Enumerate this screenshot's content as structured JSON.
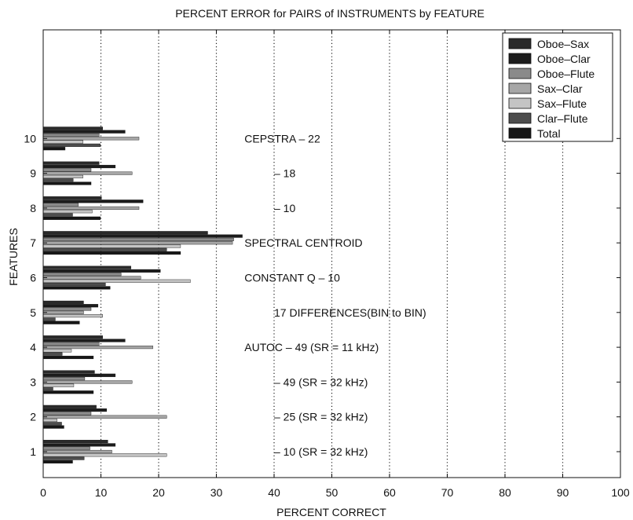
{
  "chart_data": {
    "type": "bar",
    "orientation": "horizontal",
    "title": "PERCENT ERROR for PAIRS of INSTRUMENTS by FEATURE",
    "xlabel": "PERCENT CORRECT",
    "ylabel": "FEATURES",
    "xlim": [
      0,
      100
    ],
    "xticks": [
      0,
      10,
      20,
      30,
      40,
      50,
      60,
      70,
      80,
      90,
      100
    ],
    "xgrid": "dotted",
    "legend_position": "top-right",
    "categories": [
      "1",
      "2",
      "3",
      "4",
      "5",
      "6",
      "7",
      "8",
      "9",
      "10"
    ],
    "series": [
      {
        "name": "Oboe–Sax",
        "color": "#2a2a2a",
        "values": [
          11.2,
          9.2,
          8.9,
          10.3,
          7.0,
          15.2,
          28.5,
          10.1,
          9.7,
          10.3
        ]
      },
      {
        "name": "Oboe–Clar",
        "color": "#1c1c1c",
        "values": [
          12.5,
          11.0,
          12.5,
          14.2,
          9.5,
          20.3,
          34.5,
          17.3,
          12.5,
          14.2
        ]
      },
      {
        "name": "Oboe–Flute",
        "color": "#8a8a8a",
        "values": [
          8.1,
          8.3,
          7.2,
          9.7,
          8.3,
          13.5,
          33.0,
          6.1,
          8.3,
          9.7
        ]
      },
      {
        "name": "Sax–Clar",
        "color": "#a6a6a6",
        "values": [
          11.9,
          21.4,
          15.4,
          19.0,
          7.0,
          16.9,
          32.8,
          16.6,
          15.4,
          16.6
        ]
      },
      {
        "name": "Sax–Flute",
        "color": "#c4c4c4",
        "values": [
          21.4,
          2.4,
          5.3,
          4.9,
          10.3,
          25.5,
          23.8,
          8.5,
          6.9,
          6.9
        ]
      },
      {
        "name": "Clar–Flute",
        "color": "#4d4d4d",
        "values": [
          7.1,
          3.2,
          1.7,
          3.3,
          2.1,
          10.8,
          21.4,
          5.1,
          5.2,
          9.9
        ]
      },
      {
        "name": "Total",
        "color": "#161616",
        "values": [
          5.1,
          3.6,
          8.7,
          8.7,
          6.3,
          11.6,
          23.8,
          9.9,
          8.3,
          3.8
        ]
      }
    ],
    "annotations": [
      {
        "text": "CEPSTRA – 22",
        "feature": 10,
        "x": 35
      },
      {
        "text": "– 18",
        "feature": 9,
        "x": 40
      },
      {
        "text": "– 10",
        "feature": 8,
        "x": 40
      },
      {
        "text": "SPECTRAL CENTROID",
        "feature": 7,
        "x": 35
      },
      {
        "text": "CONSTANT Q – 10",
        "feature": 6,
        "x": 35
      },
      {
        "text": "17 DIFFERENCES(BIN to BIN)",
        "feature": 5,
        "x": 40
      },
      {
        "text": "AUTOC – 49 (SR = 11 kHz)",
        "feature": 4,
        "x": 35
      },
      {
        "text": "– 49 (SR = 32 kHz)",
        "feature": 3,
        "x": 40
      },
      {
        "text": "– 25 (SR = 32 kHz)",
        "feature": 2,
        "x": 40
      },
      {
        "text": "– 10 (SR = 32 kHz)",
        "feature": 1,
        "x": 40
      }
    ]
  }
}
